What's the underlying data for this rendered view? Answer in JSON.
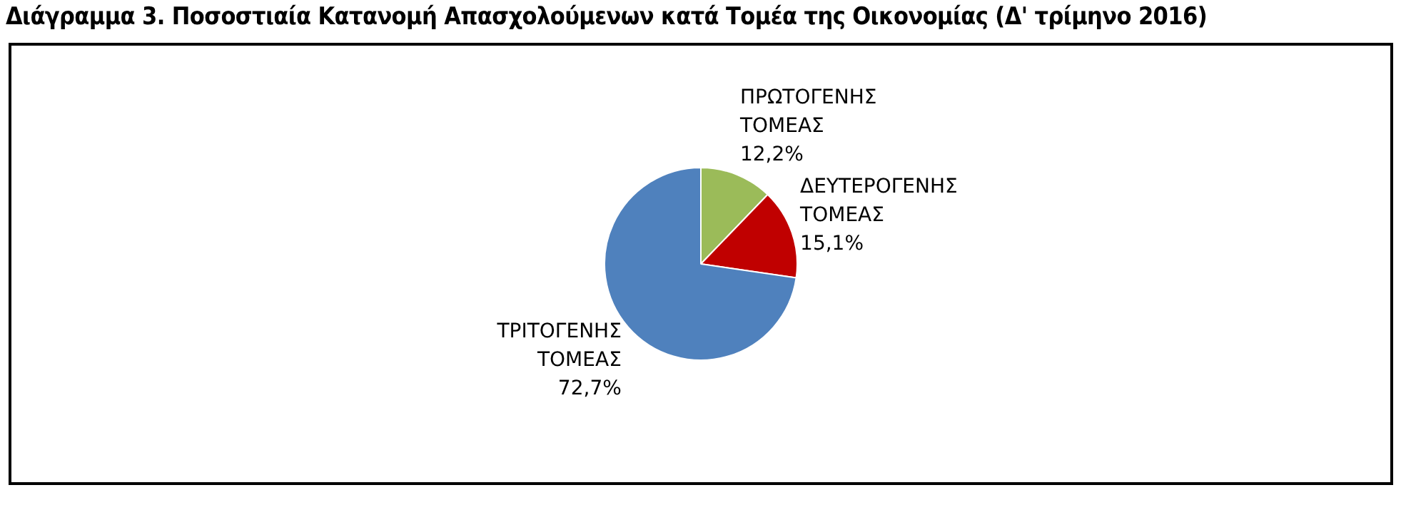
{
  "chart_data": {
    "type": "pie",
    "title": "Διάγραμμα 3. Ποσοστιαία Κατανομή Απασχολούμενων κατά Τομέα της Οικονομίας (Δ' τρίμηνο 2016)",
    "categories": [
      "ΠΡΩΤΟΓΕΝΗΣ ΤΟΜΕΑΣ",
      "ΔΕΥΤΕΡΟΓΕΝΗΣ ΤΟΜΕΑΣ",
      "ΤΡΙΤΟΓΕΝΗΣ ΤΟΜΕΑΣ"
    ],
    "values": [
      12.2,
      15.1,
      72.7
    ],
    "colors": [
      "#9bbb59",
      "#c00000",
      "#4f81bd"
    ],
    "value_labels": [
      "12,2%",
      "15,1%",
      "72,7%"
    ]
  }
}
